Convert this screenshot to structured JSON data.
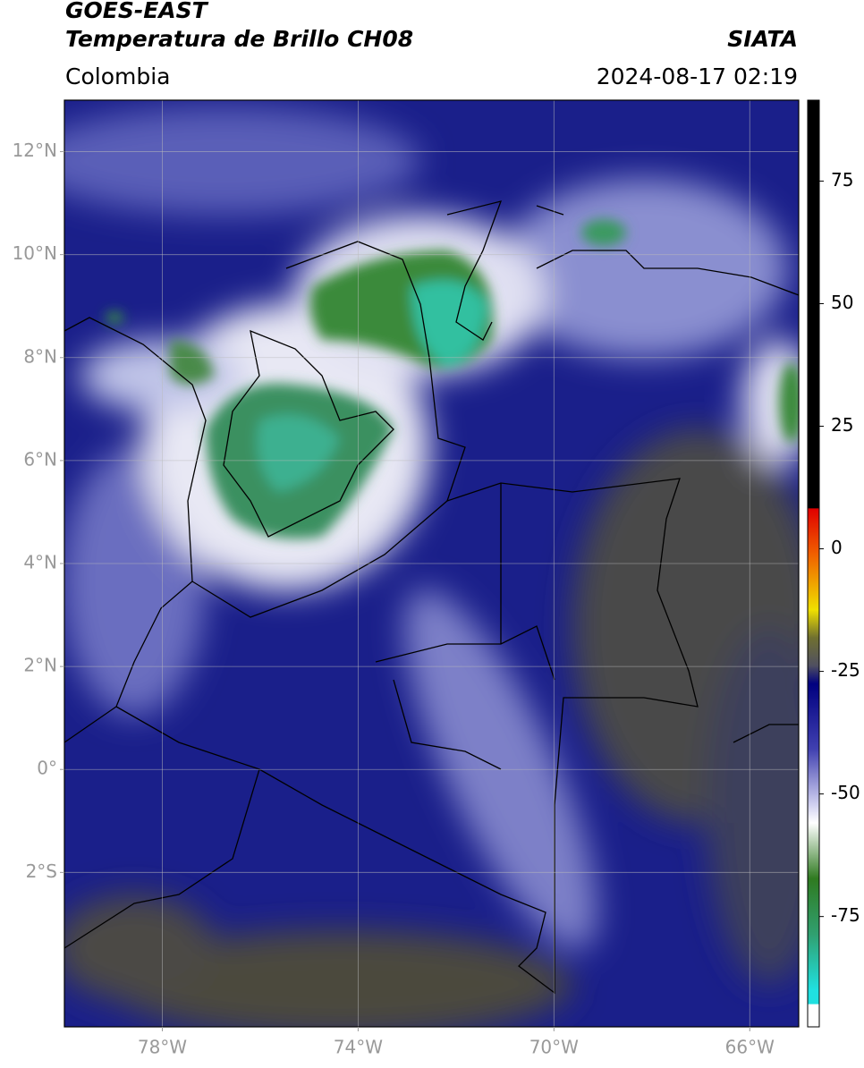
{
  "header": {
    "satellite": "GOES-EAST",
    "product": "Temperatura de Brillo CH08",
    "source": "SIATA",
    "region": "Colombia",
    "datetime": "2024-08-17 02:19"
  },
  "map": {
    "lonlim": [
      -80,
      -65
    ],
    "latlim": [
      -5,
      13
    ],
    "lat_ticks": [
      {
        "value": 12,
        "label": "12°N"
      },
      {
        "value": 10,
        "label": "10°N"
      },
      {
        "value": 8,
        "label": "8°N"
      },
      {
        "value": 6,
        "label": "6°N"
      },
      {
        "value": 4,
        "label": "4°N"
      },
      {
        "value": 2,
        "label": "2°N"
      },
      {
        "value": 0,
        "label": "0°"
      },
      {
        "value": -2,
        "label": "2°S"
      }
    ],
    "lon_ticks": [
      {
        "value": -78,
        "label": "78°W"
      },
      {
        "value": -74,
        "label": "74°W"
      },
      {
        "value": -70,
        "label": "70°W"
      },
      {
        "value": -66,
        "label": "66°W"
      }
    ]
  },
  "colorbar": {
    "lim": [
      -97.5,
      91.5
    ],
    "ticks": [
      75,
      50,
      25,
      0,
      -25,
      -50,
      -75
    ]
  }
}
